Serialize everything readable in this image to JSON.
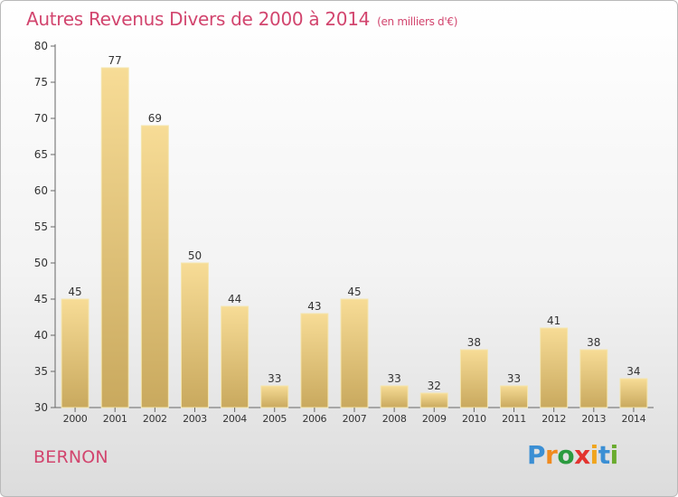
{
  "title": "Autres Revenus Divers de 2000 à 2014",
  "subtitle": "(en milliers d'€)",
  "commune": "BERNON",
  "logo": {
    "letters": [
      "P",
      "r",
      "o",
      "x",
      "i",
      "t",
      "i"
    ],
    "colors": [
      "#3b8fd4",
      "#f08a1e",
      "#2b9b3f",
      "#e3342f",
      "#f0a51e",
      "#3b8fd4",
      "#6aab2e"
    ]
  },
  "colors": {
    "title": "#d2456e",
    "bar_light": "#f7dc96",
    "bar_dark": "#c9a95e",
    "axis": "#666666",
    "grid": "#d8d8d8"
  },
  "chart_data": {
    "type": "bar",
    "categories": [
      "2000",
      "2001",
      "2002",
      "2003",
      "2004",
      "2005",
      "2006",
      "2007",
      "2008",
      "2009",
      "2010",
      "2011",
      "2012",
      "2013",
      "2014"
    ],
    "values": [
      45,
      77,
      69,
      50,
      44,
      33,
      43,
      45,
      33,
      32,
      38,
      33,
      41,
      38,
      34
    ],
    "ylim": [
      30,
      80
    ],
    "yticks": [
      30,
      35,
      40,
      45,
      50,
      55,
      60,
      65,
      70,
      75,
      80
    ],
    "grid": false,
    "title": "Autres Revenus Divers de 2000 à 2014",
    "xlabel": "",
    "ylabel": ""
  }
}
